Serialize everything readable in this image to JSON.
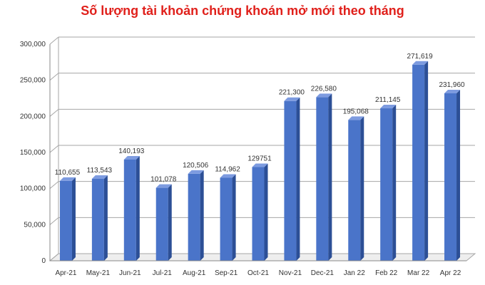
{
  "chart_data": {
    "type": "bar",
    "title": "Số lượng tài khoản chứng khoán mở mới theo tháng",
    "xlabel": "",
    "ylabel": "",
    "categories": [
      "Apr-21",
      "May-21",
      "Jun-21",
      "Jul-21",
      "Aug-21",
      "Sep-21",
      "Oct-21",
      "Nov-21",
      "Dec-21",
      "Jan 22",
      "Feb 22",
      "Mar 22",
      "Apr 22"
    ],
    "values": [
      110655,
      113543,
      140193,
      101078,
      120506,
      114962,
      129751,
      221300,
      226580,
      195068,
      211145,
      271619,
      231960
    ],
    "value_labels": [
      "110,655",
      "113,543",
      "140,193",
      "101,078",
      "120,506",
      "114,962",
      "129751",
      "221,300",
      "226,580",
      "195,068",
      "211,145",
      "271,619",
      "231,960"
    ],
    "ylim": [
      0,
      300000
    ],
    "yticks": [
      0,
      50000,
      100000,
      150000,
      200000,
      250000,
      300000
    ],
    "ytick_labels": [
      "0",
      "50,000",
      "100,000",
      "150,000",
      "200,000",
      "250,000",
      "300,000"
    ],
    "grid": true,
    "legend": "none",
    "colors": {
      "bar_front": "#4a74c9",
      "bar_side": "#2c4f96",
      "bar_top": "#7d9be0",
      "title": "#e0201b",
      "grid": "#a6a6a6"
    }
  }
}
